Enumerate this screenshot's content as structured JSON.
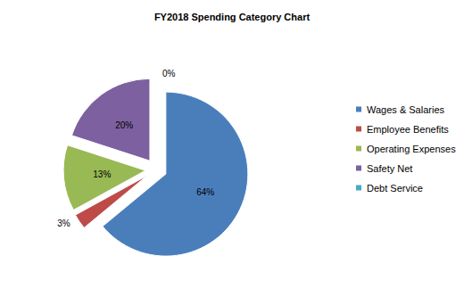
{
  "chart_data": {
    "type": "pie",
    "title": "FY2018 Spending Category Chart",
    "categories": [
      "Wages & Salaries",
      "Employee Benefits",
      "Operating Expenses",
      "Safety Net",
      "Debt Service"
    ],
    "values": [
      64,
      3,
      13,
      20,
      0
    ],
    "value_labels": [
      "64%",
      "3%",
      "13%",
      "20%",
      "0%"
    ],
    "colors": [
      "#4a7ebb",
      "#be4b48",
      "#98b954",
      "#7d60a0",
      "#46aac5"
    ],
    "data_labels": true,
    "legend": "right"
  }
}
